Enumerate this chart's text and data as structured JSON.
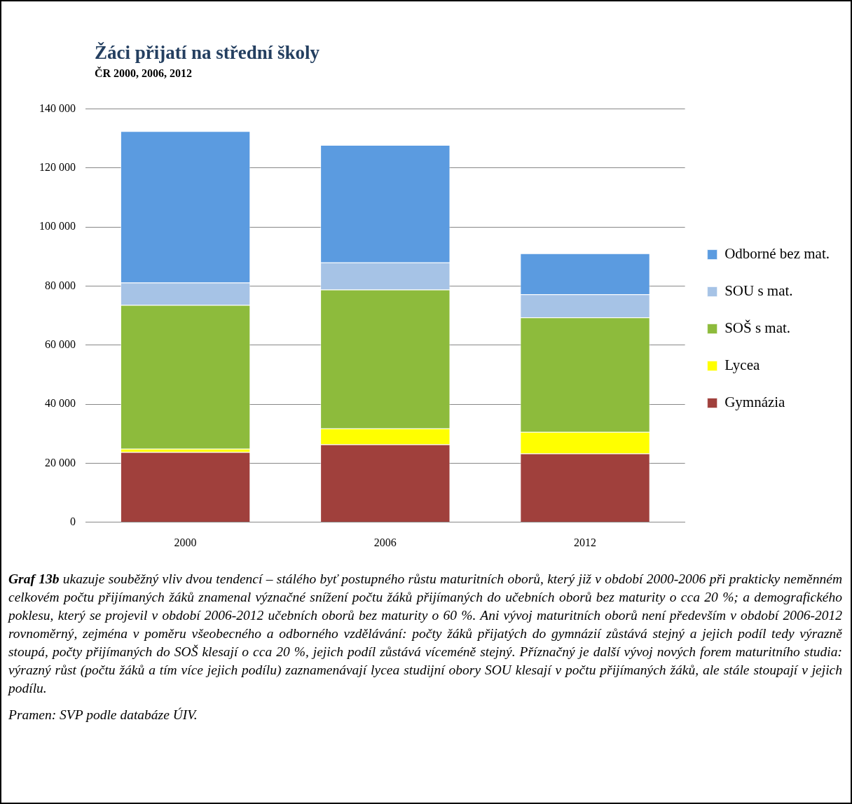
{
  "chart_data": {
    "type": "bar",
    "title": "Žáci přijatí na střední školy",
    "subtitle": "ČR 2000, 2006, 2012",
    "categories": [
      "2000",
      "2006",
      "2012"
    ],
    "stacked": true,
    "series": [
      {
        "name": "Gymnázia",
        "color": "#a0403c",
        "values": [
          23800,
          26400,
          23300
        ]
      },
      {
        "name": "Lycea",
        "color": "#ffff00",
        "values": [
          1100,
          5400,
          7300
        ]
      },
      {
        "name": "SOŠ s mat.",
        "color": "#8dbb3c",
        "values": [
          48700,
          47000,
          38800
        ]
      },
      {
        "name": "SOU s mat.",
        "color": "#a6c3e6",
        "values": [
          7600,
          9200,
          7800
        ]
      },
      {
        "name": "Odborné bez mat.",
        "color": "#5b9be0",
        "values": [
          51300,
          39800,
          13900
        ]
      }
    ],
    "ylim": [
      0,
      140000
    ],
    "yticks": [
      0,
      {
        "value": 20000,
        "label": "20 000"
      },
      {
        "value": 40000,
        "label": "40 000"
      },
      {
        "value": 60000,
        "label": "60 000"
      },
      {
        "value": 80000,
        "label": "80 000"
      },
      {
        "value": 100000,
        "label": "100 000"
      },
      {
        "value": 120000,
        "label": "120 000"
      },
      {
        "value": 140000,
        "label": "140 000"
      }
    ],
    "grid": "y",
    "legend": "right",
    "annotations": [
      "Graf 13b",
      "ukazuje souběžný vliv dvou tendencí – stálého byť postupného růstu maturitních oborů, který již v období 2000-2006 při prakticky neměnném celkovém počtu přijímaných žáků znamenal význačné snížení počtu žáků přijímaných do učebních oborů bez maturity o cca 20 %; a demografického poklesu, který se projevil v období 2006-2012 učebních oborů bez maturity o 60 %. Ani vývoj maturitních oborů není především v období 2006-2012 rovnoměrný, zejména v poměru všeobecného a odborného vzdělávání: počty žáků přijatých do gymnázií zůstává stejný a jejich podíl tedy výrazně stoupá, počty přijímaných do SOŠ klesají o cca 20 %, jejich podíl zůstává víceméně stejný. Příznačný je další vývoj nových forem maturitního studia: výrazný růst (počtu žáků a tím více jejich podílu) zaznamenávají lycea studijní obory SOU klesají v počtu přijímaných žáků, ale stále stoupají v jejich podílu.",
      "Pramen: SVP podle databáze ÚIV."
    ]
  }
}
